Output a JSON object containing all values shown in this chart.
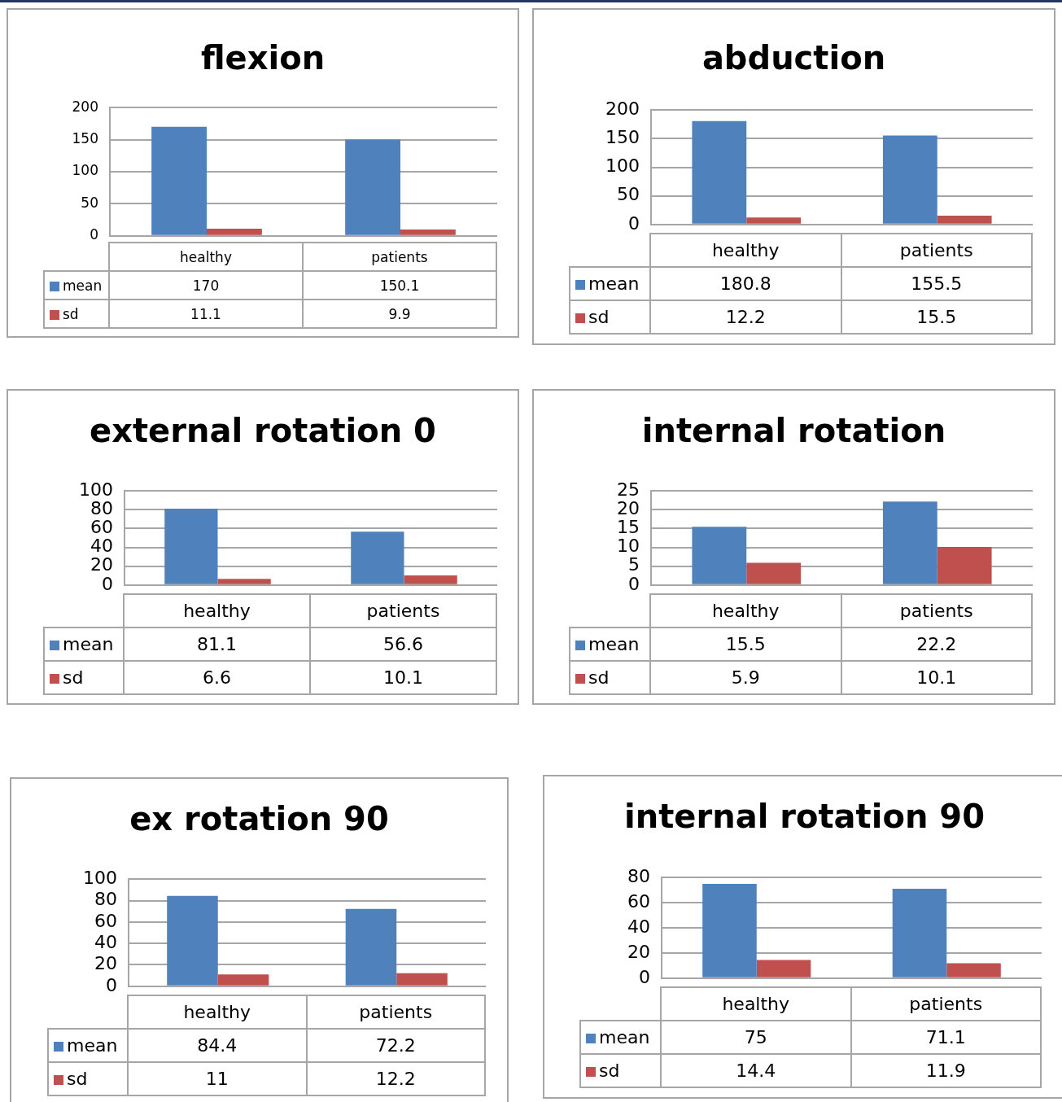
{
  "chart_data": [
    {
      "type": "bar",
      "title": "flexion",
      "categories": [
        "healthy",
        "patients"
      ],
      "series": [
        {
          "name": "mean",
          "color": "#4f81bd",
          "values": [
            170,
            150.1
          ]
        },
        {
          "name": "sd",
          "color": "#c0504d",
          "values": [
            11.1,
            9.9
          ]
        }
      ],
      "ylim": [
        0,
        200
      ],
      "yticks": [
        0,
        50,
        100,
        150,
        200
      ],
      "grid": "y",
      "legend": "bottom",
      "data_labels": true
    },
    {
      "type": "bar",
      "title": "abduction",
      "categories": [
        "healthy",
        "patients"
      ],
      "series": [
        {
          "name": "mean",
          "color": "#4f81bd",
          "values": [
            180.8,
            155.5
          ]
        },
        {
          "name": "sd",
          "color": "#c0504d",
          "values": [
            12.2,
            15.5
          ]
        }
      ],
      "ylim": [
        0,
        200
      ],
      "yticks": [
        0,
        50,
        100,
        150,
        200
      ],
      "grid": "y",
      "legend": "bottom",
      "data_labels": true
    },
    {
      "type": "bar",
      "title": "external rotation 0",
      "categories": [
        "healthy",
        "patients"
      ],
      "series": [
        {
          "name": "mean",
          "color": "#4f81bd",
          "values": [
            81.1,
            56.6
          ]
        },
        {
          "name": "sd",
          "color": "#c0504d",
          "values": [
            6.6,
            10.1
          ]
        }
      ],
      "ylim": [
        0,
        100
      ],
      "yticks": [
        0,
        20,
        40,
        60,
        80,
        100
      ],
      "grid": "y",
      "legend": "bottom",
      "data_labels": true
    },
    {
      "type": "bar",
      "title": "internal rotation",
      "categories": [
        "healthy",
        "patients"
      ],
      "series": [
        {
          "name": "mean",
          "color": "#4f81bd",
          "values": [
            15.5,
            22.2
          ]
        },
        {
          "name": "sd",
          "color": "#c0504d",
          "values": [
            5.9,
            10.1
          ]
        }
      ],
      "ylim": [
        0,
        25
      ],
      "yticks": [
        0,
        5,
        10,
        15,
        20,
        25
      ],
      "grid": "y",
      "legend": "bottom",
      "data_labels": true
    },
    {
      "type": "bar",
      "title": "ex rotation 90",
      "categories": [
        "healthy",
        "patients"
      ],
      "series": [
        {
          "name": "mean",
          "color": "#4f81bd",
          "values": [
            84.4,
            72.2
          ]
        },
        {
          "name": "sd",
          "color": "#c0504d",
          "values": [
            11,
            12.2
          ]
        }
      ],
      "ylim": [
        0,
        100
      ],
      "yticks": [
        0,
        20,
        40,
        60,
        80,
        100
      ],
      "grid": "y",
      "legend": "bottom",
      "data_labels": true
    },
    {
      "type": "bar",
      "title": "internal rotation 90",
      "categories": [
        "healthy",
        "patients"
      ],
      "series": [
        {
          "name": "mean",
          "color": "#4f81bd",
          "values": [
            75,
            71.1
          ]
        },
        {
          "name": "sd",
          "color": "#c0504d",
          "values": [
            14.4,
            11.9
          ]
        }
      ],
      "ylim": [
        0,
        80
      ],
      "yticks": [
        0,
        20,
        40,
        60,
        80
      ],
      "grid": "y",
      "legend": "bottom",
      "data_labels": true
    }
  ]
}
